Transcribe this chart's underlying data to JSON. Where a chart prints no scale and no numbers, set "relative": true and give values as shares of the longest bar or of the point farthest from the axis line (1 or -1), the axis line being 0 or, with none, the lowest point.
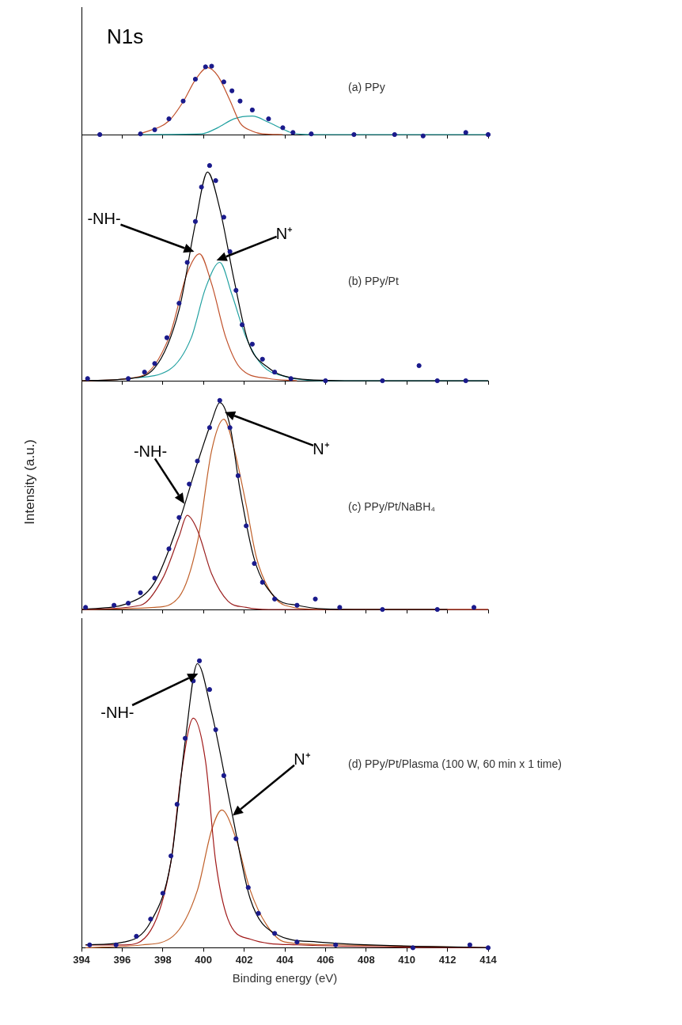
{
  "chart_data": [
    {
      "type": "line",
      "title": "N1s",
      "relative": true,
      "xlim": [
        394,
        414
      ],
      "xticks": [
        394,
        396,
        398,
        400,
        402,
        404,
        406,
        408,
        410,
        412,
        414
      ],
      "tick_labels": false,
      "series": [
        {
          "type": "scatter",
          "marker": "circle",
          "color": "#1a1a8c",
          "x": [
            394.9,
            396.9,
            397.6,
            398.3,
            399.0,
            399.6,
            400.1,
            400.4,
            401.0,
            401.4,
            401.8,
            402.4,
            403.2,
            403.9,
            404.4,
            405.3,
            407.4,
            409.4,
            410.8,
            412.9,
            414.0
          ],
          "values": [
            0,
            0.01,
            0.07,
            0.23,
            0.49,
            0.81,
            0.99,
            1.0,
            0.77,
            0.64,
            0.49,
            0.36,
            0.23,
            0.1,
            0.03,
            0.01,
            0,
            0,
            -0.02,
            0.03,
            0
          ]
        },
        {
          "type": "line",
          "color": "#c0502a",
          "x": [
            396.9,
            398.3,
            399.0,
            399.6,
            400.2,
            400.7,
            401.3,
            401.8,
            402.4,
            402.9,
            403.9
          ],
          "values": [
            0.01,
            0.2,
            0.48,
            0.8,
            0.98,
            0.86,
            0.5,
            0.17,
            0.05,
            0.01,
            0
          ]
        },
        {
          "type": "line",
          "color": "#20a0a0",
          "x": [
            396.9,
            399.9,
            400.7,
            401.5,
            402.4,
            403.2,
            403.9,
            404.4,
            405.3,
            414.0
          ],
          "values": [
            0,
            0.01,
            0.1,
            0.23,
            0.27,
            0.18,
            0.08,
            0.02,
            0,
            0
          ]
        }
      ],
      "annotations": [
        "(a) PPy"
      ]
    },
    {
      "type": "line",
      "relative": true,
      "xlim": [
        394,
        414
      ],
      "xticks": [
        394,
        396,
        398,
        400,
        402,
        404,
        406,
        408,
        410,
        412,
        414
      ],
      "tick_labels": false,
      "series": [
        {
          "type": "scatter",
          "marker": "circle",
          "color": "#1a1a8c",
          "x": [
            394.3,
            396.3,
            397.1,
            397.6,
            398.2,
            398.8,
            399.2,
            399.6,
            399.9,
            400.3,
            400.6,
            401.0,
            401.3,
            401.6,
            401.9,
            402.4,
            402.9,
            403.5,
            404.3,
            406.0,
            408.8,
            410.6,
            411.5,
            412.9
          ],
          "values": [
            0.01,
            0.01,
            0.04,
            0.08,
            0.2,
            0.36,
            0.55,
            0.74,
            0.9,
            1.0,
            0.93,
            0.76,
            0.6,
            0.42,
            0.26,
            0.17,
            0.1,
            0.04,
            0.01,
            0,
            0,
            0.07,
            0,
            0
          ]
        },
        {
          "type": "line",
          "color": "#000000",
          "x": [
            394.0,
            396.3,
            397.6,
            398.8,
            399.6,
            400.2,
            400.8,
            401.5,
            402.2,
            403.2,
            404.6,
            407.4,
            414.0
          ],
          "values": [
            0,
            0.01,
            0.06,
            0.33,
            0.73,
            0.97,
            0.8,
            0.47,
            0.18,
            0.06,
            0.01,
            0,
            0
          ]
        },
        {
          "type": "line",
          "color": "#c0502a",
          "x": [
            394.0,
            396.9,
            398.3,
            399.2,
            399.8,
            400.4,
            401.1,
            401.8,
            403.2,
            404.6
          ],
          "values": [
            0,
            0.02,
            0.2,
            0.5,
            0.59,
            0.45,
            0.2,
            0.06,
            0.01,
            0
          ]
        },
        {
          "type": "line",
          "color": "#20a0a0",
          "x": [
            396.3,
            398.3,
            399.4,
            400.1,
            400.8,
            401.4,
            402.1,
            402.9,
            404.0,
            406.0,
            414.0
          ],
          "values": [
            0.01,
            0.05,
            0.2,
            0.43,
            0.55,
            0.4,
            0.2,
            0.07,
            0.02,
            0,
            0
          ]
        }
      ],
      "annotations": [
        "(b) PPy/Pt",
        "-NH-",
        "N⁺"
      ]
    },
    {
      "type": "line",
      "ylabel": "Intensity (a.u.)",
      "relative": true,
      "xlim": [
        394,
        414
      ],
      "xticks": [
        394,
        396,
        398,
        400,
        402,
        404,
        406,
        408,
        410,
        412,
        414
      ],
      "tick_labels": false,
      "series": [
        {
          "type": "scatter",
          "marker": "circle",
          "color": "#1a1a8c",
          "x": [
            394.2,
            395.6,
            396.3,
            396.9,
            397.6,
            398.3,
            398.8,
            399.3,
            399.7,
            400.3,
            400.8,
            401.3,
            401.7,
            402.1,
            402.5,
            402.9,
            403.5,
            404.6,
            405.5,
            406.7,
            408.8,
            411.5,
            413.3
          ],
          "values": [
            0.01,
            0.02,
            0.03,
            0.08,
            0.15,
            0.29,
            0.44,
            0.6,
            0.71,
            0.87,
            1.0,
            0.87,
            0.64,
            0.4,
            0.22,
            0.13,
            0.05,
            0.02,
            0.05,
            0.01,
            0,
            0,
            0.01
          ]
        },
        {
          "type": "line",
          "color": "#000000",
          "x": [
            394.0,
            396.3,
            397.6,
            398.8,
            399.7,
            400.4,
            400.8,
            401.3,
            401.8,
            402.5,
            403.5,
            404.6,
            407.4,
            412.0
          ],
          "values": [
            0,
            0.03,
            0.13,
            0.42,
            0.7,
            0.9,
            0.99,
            0.88,
            0.57,
            0.24,
            0.06,
            0.02,
            0,
            0
          ]
        },
        {
          "type": "line",
          "color": "#9b2020",
          "x": [
            394.0,
            396.9,
            398.0,
            398.8,
            399.2,
            399.7,
            400.4,
            401.2,
            402.1,
            403.2,
            414.0
          ],
          "values": [
            0,
            0.02,
            0.15,
            0.35,
            0.45,
            0.38,
            0.17,
            0.04,
            0.01,
            0,
            0
          ]
        },
        {
          "type": "line",
          "color": "#c0602a",
          "x": [
            394.0,
            397.6,
            398.8,
            399.7,
            400.4,
            401.0,
            401.5,
            402.1,
            402.6,
            403.2,
            404.0,
            406.0,
            414.0
          ],
          "values": [
            0,
            0.01,
            0.06,
            0.32,
            0.76,
            0.91,
            0.77,
            0.5,
            0.25,
            0.1,
            0.02,
            0,
            0
          ]
        }
      ],
      "annotations": [
        "(c) PPy/Pt/NaBH₄",
        "-NH-",
        "N⁺"
      ]
    },
    {
      "type": "line",
      "xlabel": "Binding energy (eV)",
      "relative": true,
      "xlim": [
        394,
        414
      ],
      "xticks": [
        394,
        396,
        398,
        400,
        402,
        404,
        406,
        408,
        410,
        412,
        414
      ],
      "tick_labels": "x",
      "series": [
        {
          "type": "scatter",
          "marker": "circle",
          "color": "#1a1a8c",
          "x": [
            394.4,
            395.7,
            396.7,
            397.4,
            398.0,
            398.4,
            398.7,
            399.1,
            399.5,
            399.8,
            400.3,
            400.6,
            401.0,
            401.6,
            402.2,
            402.7,
            403.5,
            404.6,
            406.5,
            410.3,
            413.1,
            414.0
          ],
          "values": [
            0.01,
            0.01,
            0.04,
            0.1,
            0.19,
            0.32,
            0.5,
            0.73,
            0.93,
            1.0,
            0.9,
            0.76,
            0.6,
            0.38,
            0.21,
            0.12,
            0.05,
            0.02,
            0.01,
            0,
            0.01,
            0
          ]
        },
        {
          "type": "line",
          "color": "#000000",
          "x": [
            394.2,
            396.1,
            397.4,
            398.4,
            399.1,
            399.7,
            400.4,
            401.4,
            402.3,
            403.5,
            405.6,
            414.0
          ],
          "values": [
            0.01,
            0.02,
            0.09,
            0.3,
            0.72,
            0.99,
            0.82,
            0.47,
            0.17,
            0.05,
            0.02,
            0
          ]
        },
        {
          "type": "line",
          "color": "#a01818",
          "x": [
            394.2,
            396.1,
            397.4,
            398.4,
            398.9,
            399.5,
            400.1,
            400.6,
            401.2,
            402.3,
            404.6,
            414.0
          ],
          "values": [
            0.01,
            0.01,
            0.06,
            0.3,
            0.6,
            0.8,
            0.65,
            0.3,
            0.1,
            0.03,
            0.01,
            0
          ]
        },
        {
          "type": "line",
          "color": "#c0602a",
          "x": [
            394.2,
            397.0,
            398.5,
            399.7,
            400.4,
            400.9,
            401.6,
            402.3,
            403.1,
            404.0,
            406.5,
            414.0
          ],
          "values": [
            0,
            0.01,
            0.04,
            0.2,
            0.41,
            0.48,
            0.38,
            0.2,
            0.08,
            0.02,
            0.01,
            0
          ]
        }
      ],
      "annotations": [
        "(d) PPy/Pt/Plasma (100 W, 60 min x 1 time)",
        "-NH-",
        "N⁺"
      ]
    }
  ]
}
